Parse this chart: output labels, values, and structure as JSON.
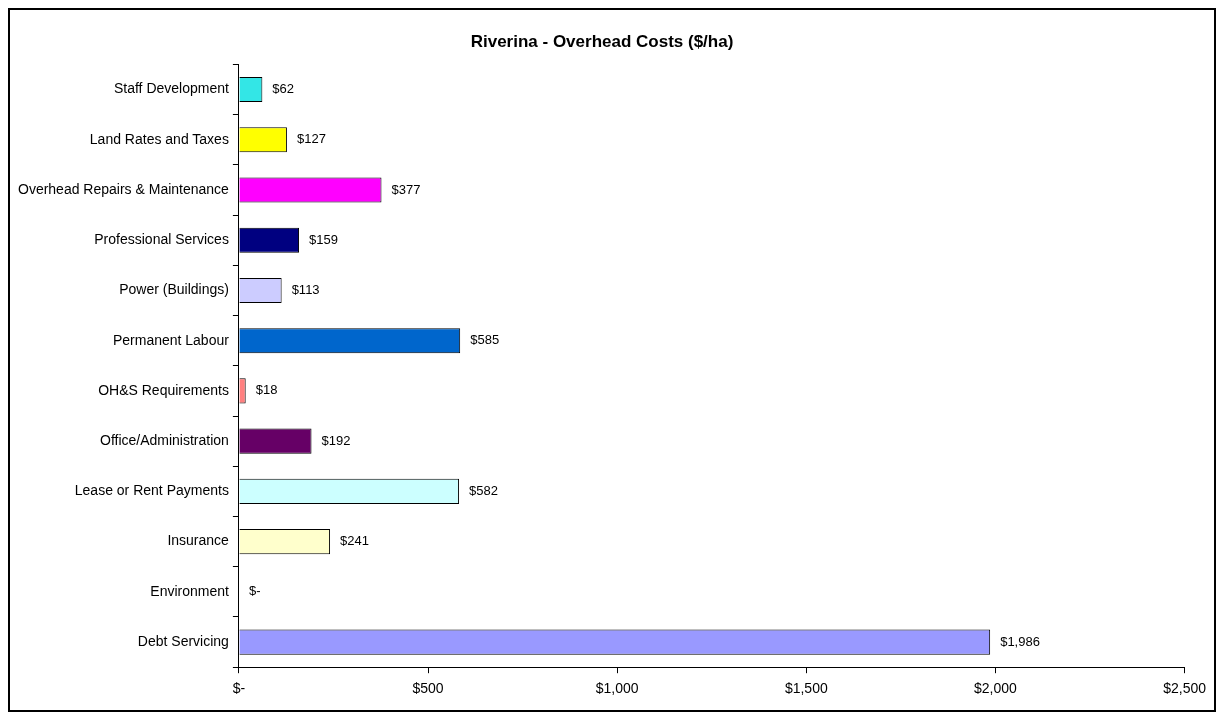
{
  "chart_data": {
    "type": "bar",
    "orientation": "horizontal",
    "title": "Riverina - Overhead Costs ($/ha)",
    "categories": [
      "Staff Development",
      "Land Rates and Taxes",
      "Overhead Repairs & Maintenance",
      "Professional Services",
      "Power (Buildings)",
      "Permanent Labour",
      "OH&S Requirements",
      "Office/Administration",
      "Lease or Rent Payments",
      "Insurance",
      "Environment",
      "Debt Servicing"
    ],
    "values": [
      62,
      127,
      377,
      159,
      113,
      585,
      18,
      192,
      582,
      241,
      0,
      1986
    ],
    "colors": [
      "#33e6e6",
      "#ffff00",
      "#ff00ff",
      "#000080",
      "#ccccff",
      "#0066cc",
      "#ff8080",
      "#660066",
      "#ccffff",
      "#ffffcc",
      "#ffffff",
      "#9999ff"
    ],
    "value_labels": [
      "$62",
      "$127",
      "$377",
      "$159",
      "$113",
      "$585",
      "$18",
      "$192",
      "$582",
      "$241",
      "$-",
      "$1,986"
    ],
    "xlim": [
      0,
      2500
    ],
    "xticks": [
      {
        "value": 0,
        "label": "$-"
      },
      {
        "value": 500,
        "label": "$500"
      },
      {
        "value": 1000,
        "label": "$1,000"
      },
      {
        "value": 1500,
        "label": "$1,500"
      },
      {
        "value": 2000,
        "label": "$2,000"
      },
      {
        "value": 2500,
        "label": "$2,500"
      }
    ]
  }
}
